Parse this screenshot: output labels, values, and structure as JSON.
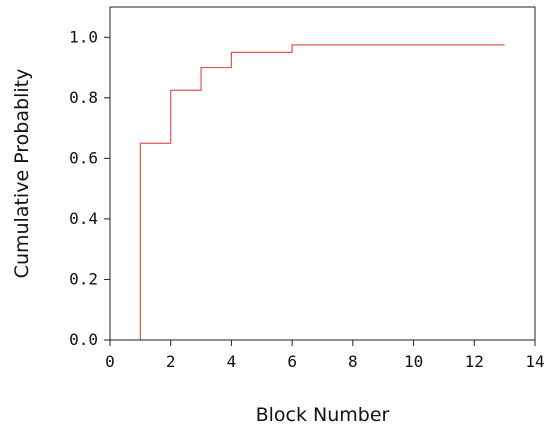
{
  "chart_data": {
    "type": "line",
    "step": "post",
    "title": "",
    "xlabel": "Block Number",
    "ylabel": "Cumulative Probablity",
    "xlim": [
      0,
      14
    ],
    "ylim": [
      0,
      1.1
    ],
    "xticks": [
      "0",
      "2",
      "4",
      "6",
      "8",
      "10",
      "12",
      "14"
    ],
    "yticks": [
      "0.0",
      "0.2",
      "0.4",
      "0.6",
      "0.8",
      "1.0"
    ],
    "grid": false,
    "legend": "none",
    "series": [
      {
        "color": "#e8544e",
        "x": [
          1,
          1,
          2,
          3,
          4,
          6,
          13
        ],
        "y": [
          0,
          0.65,
          0.825,
          0.9,
          0.95,
          0.975,
          0.975
        ]
      }
    ]
  }
}
